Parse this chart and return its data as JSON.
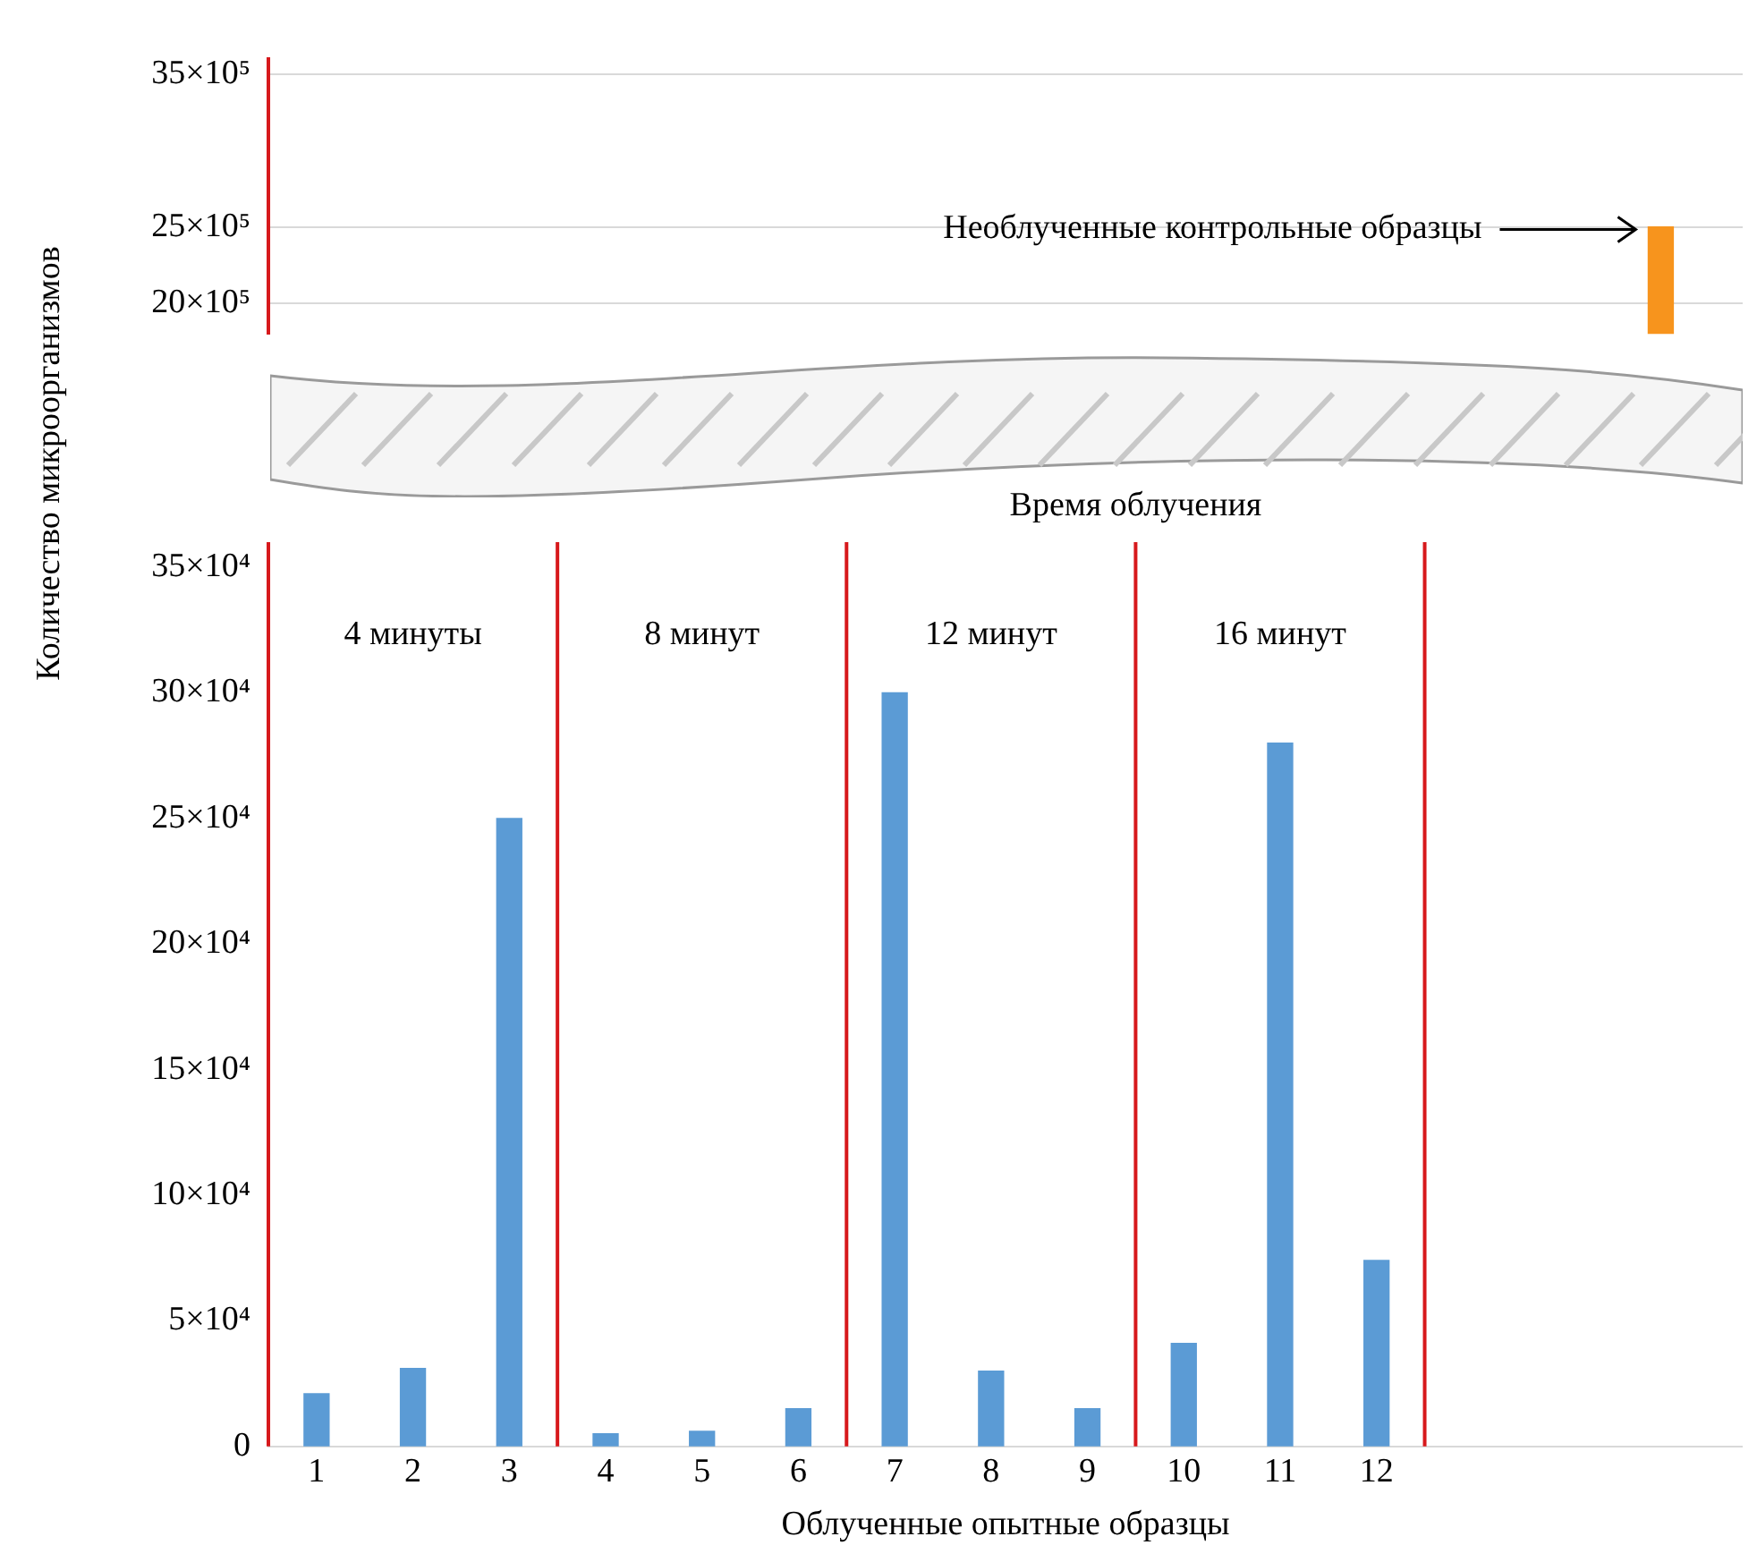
{
  "chart_data": [
    {
      "type": "bar",
      "categories": [
        null,
        null,
        null,
        null,
        null,
        null,
        null,
        null,
        null
      ],
      "tick_labels": "y",
      "grid": "y",
      "series": [
        {
          "color": "#f7941d",
          "values": [
            null,
            null,
            null,
            null,
            null,
            null,
            null,
            null,
            2500000
          ]
        }
      ],
      "ylim": [
        1800000,
        3600000
      ],
      "yticks": [
        {
          "value": 2000000,
          "label": "20×10⁵"
        },
        {
          "value": 2500000,
          "label": "25×10⁵"
        },
        {
          "value": 3500000,
          "label": "35×10⁵"
        }
      ],
      "annotations": [
        "Необлученные контрольные образцы"
      ]
    },
    {
      "type": "bar",
      "x": [
        1,
        2,
        3,
        4,
        5,
        6,
        7,
        8,
        9,
        10,
        11,
        12
      ],
      "xlim": [
        0.5,
        15.8
      ],
      "xticks": [
        1,
        2,
        3,
        4,
        5,
        6,
        7,
        8,
        9,
        10,
        11,
        12
      ],
      "xlabel": "Облученные опытные образцы",
      "ylabel": "Количество микроорганизмов",
      "series": [
        {
          "color": "#5b9bd5",
          "values": [
            21000,
            31000,
            250000,
            5000,
            6000,
            15000,
            300000,
            30000,
            15000,
            41000,
            280000,
            74000
          ]
        }
      ],
      "ylim": [
        0,
        360000
      ],
      "yticks": [
        {
          "value": 0,
          "label": "0"
        },
        {
          "value": 50000,
          "label": "5×10⁴"
        },
        {
          "value": 100000,
          "label": "10×10⁴"
        },
        {
          "value": 150000,
          "label": "15×10⁴"
        },
        {
          "value": 200000,
          "label": "20×10⁴"
        },
        {
          "value": 250000,
          "label": "25×10⁴"
        },
        {
          "value": 300000,
          "label": "30×10⁴"
        },
        {
          "value": 350000,
          "label": "35×10⁴"
        }
      ],
      "ref_lines": [
        {
          "axis": "x",
          "value": 0.5,
          "color": "#d7191c"
        },
        {
          "axis": "x",
          "value": 3.5,
          "color": "#d7191c"
        },
        {
          "axis": "x",
          "value": 6.5,
          "color": "#d7191c"
        },
        {
          "axis": "x",
          "value": 9.5,
          "color": "#d7191c"
        },
        {
          "axis": "x",
          "value": 12.5,
          "color": "#d7191c"
        }
      ],
      "annotations": [
        "4 минуты",
        "8 минут",
        "12 минут",
        "16 минут",
        "Время облучения"
      ]
    }
  ]
}
